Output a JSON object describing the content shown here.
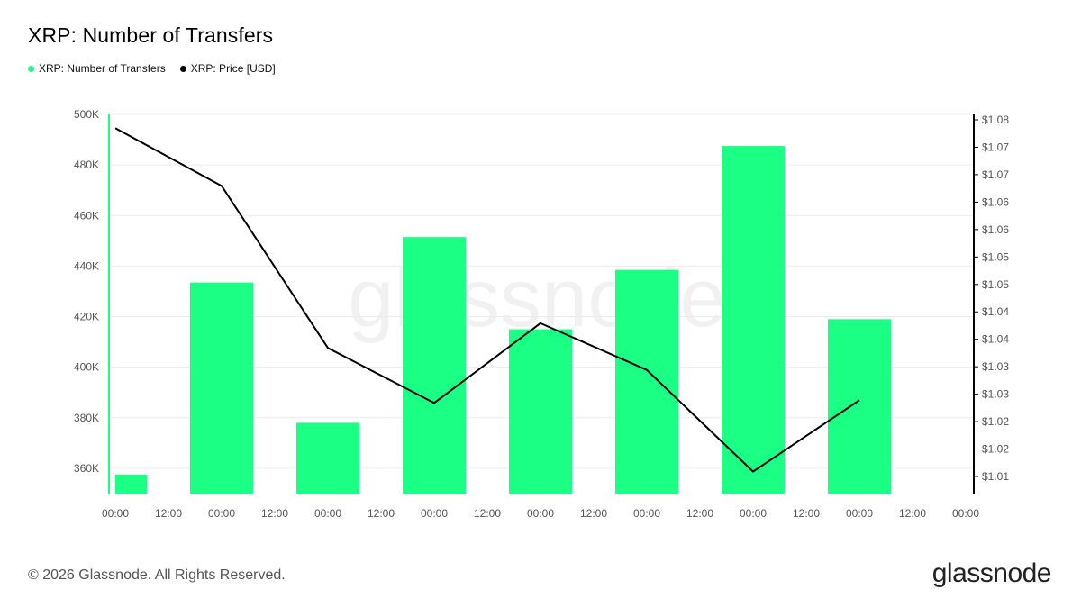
{
  "header": {
    "title": "XRP: Number of Transfers"
  },
  "legend": [
    {
      "label": "XRP: Number of Transfers",
      "color": "#1aff84"
    },
    {
      "label": "XRP: Price [USD]",
      "color": "#000000"
    }
  ],
  "footer": {
    "copyright": "© 2026 Glassnode. All Rights Reserved.",
    "brand": "glassnode"
  },
  "watermark": "glassnode",
  "chart_data": {
    "type": "bar",
    "x_tick_labels": [
      "00:00",
      "12:00",
      "00:00",
      "12:00",
      "00:00",
      "12:00",
      "00:00",
      "12:00",
      "00:00",
      "12:00",
      "00:00",
      "12:00",
      "00:00",
      "12:00",
      "00:00",
      "12:00",
      "00:00"
    ],
    "y_left": {
      "ticks": [
        "500K",
        "480K",
        "460K",
        "440K",
        "420K",
        "400K",
        "380K",
        "360K"
      ],
      "tick_values": [
        500000,
        480000,
        460000,
        440000,
        420000,
        400000,
        380000,
        360000
      ],
      "range": [
        350000,
        500000
      ]
    },
    "y_right": {
      "ticks": [
        "$1.08",
        "$1.07",
        "$1.07",
        "$1.06",
        "$1.06",
        "$1.05",
        "$1.05",
        "$1.04",
        "$1.04",
        "$1.03",
        "$1.03",
        "$1.02",
        "$1.02",
        "$1.01"
      ],
      "range": [
        1.0055,
        1.0745
      ]
    },
    "grid": true,
    "series": [
      {
        "name": "XRP: Number of Transfers",
        "type": "bar",
        "axis": "left",
        "color": "#1aff84",
        "x_index": [
          0.15,
          2,
          4,
          6,
          8,
          10,
          12,
          14
        ],
        "values": [
          357500,
          433500,
          378000,
          451500,
          415000,
          438500,
          487500,
          419000
        ]
      },
      {
        "name": "XRP: Price [USD]",
        "type": "line",
        "axis": "right",
        "color": "#000000",
        "x_index": [
          0,
          2,
          4,
          6,
          8,
          10,
          12,
          14
        ],
        "values": [
          1.072,
          1.0615,
          1.032,
          1.022,
          1.0365,
          1.028,
          1.0095,
          1.0225
        ]
      }
    ]
  }
}
